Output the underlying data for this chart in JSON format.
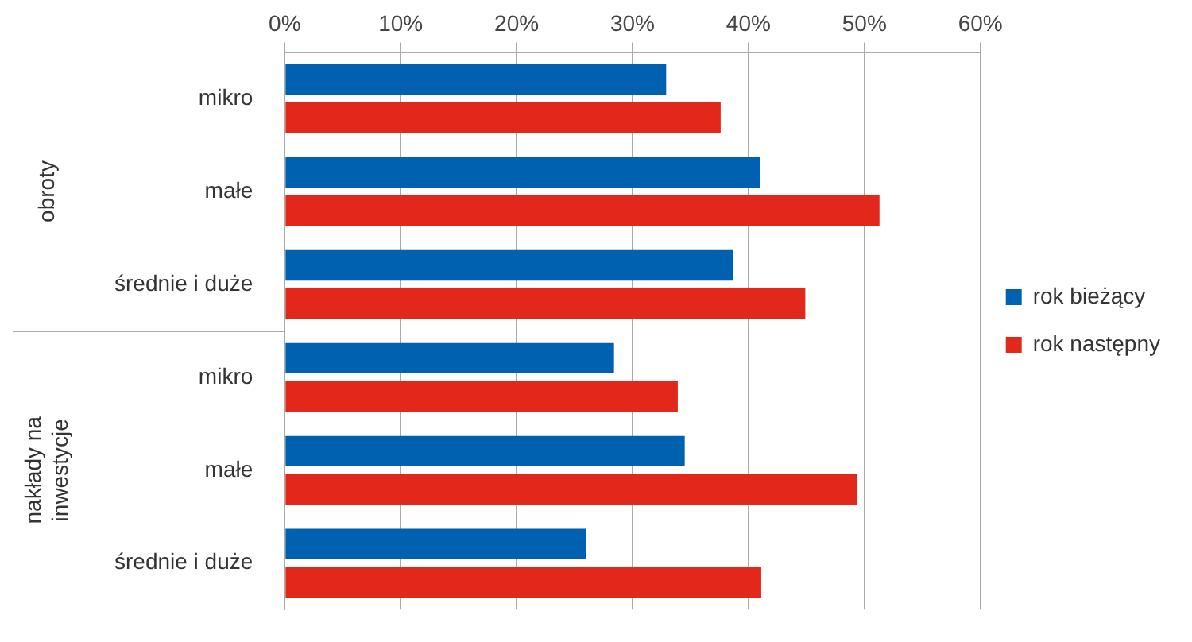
{
  "chart_data": {
    "type": "bar",
    "orientation": "horizontal",
    "categories": [
      "mikro",
      "małe",
      "średnie i duże",
      "mikro",
      "małe",
      "średnie i duże"
    ],
    "series": [
      {
        "name": "rok bieżący",
        "color": "#0061b0",
        "values": [
          32.9,
          41.0,
          38.7,
          28.4,
          34.5,
          26.0
        ]
      },
      {
        "name": "rok następny",
        "color": "#e2281a",
        "values": [
          37.6,
          51.3,
          44.9,
          33.9,
          49.4,
          41.1
        ]
      }
    ],
    "xlim": [
      0,
      60
    ],
    "xticks": [
      {
        "value": 0,
        "label": "0%"
      },
      {
        "value": 10,
        "label": "10%"
      },
      {
        "value": 20,
        "label": "20%"
      },
      {
        "value": 30,
        "label": "30%"
      },
      {
        "value": 40,
        "label": "40%"
      },
      {
        "value": 50,
        "label": "50%"
      },
      {
        "value": 60,
        "label": "60%"
      }
    ],
    "annotations": [
      "obroty",
      "nakłady na inwestycje"
    ],
    "grid": "x",
    "legend": "right"
  }
}
